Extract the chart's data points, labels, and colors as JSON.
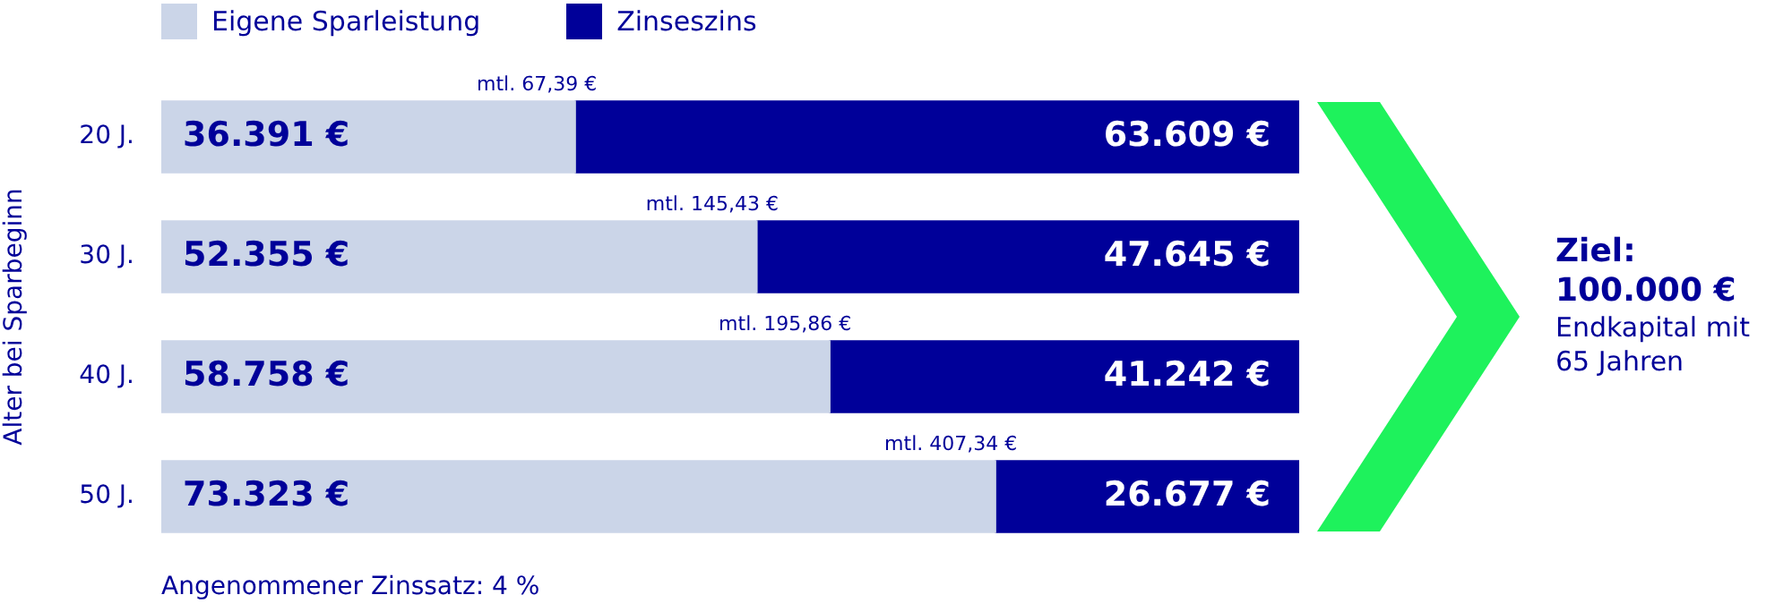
{
  "chart_data": {
    "type": "bar",
    "orientation": "horizontal",
    "stacked": true,
    "ylabel": "Alter bei Sparbeginn",
    "categories": [
      "20 J.",
      "30 J.",
      "40 J.",
      "50 J."
    ],
    "series": [
      {
        "name": "Eigene Sparleistung",
        "color": "#cbd5e8",
        "values": [
          36391,
          52355,
          58758,
          73323
        ],
        "value_labels": [
          "36.391 €",
          "52.355 €",
          "58.758 €",
          "73.323 €"
        ]
      },
      {
        "name": "Zinseszins",
        "color": "#000099",
        "values": [
          63609,
          47645,
          41242,
          26677
        ],
        "value_labels": [
          "63.609 €",
          "47.645 €",
          "41.242 €",
          "26.677 €"
        ]
      }
    ],
    "xlim": [
      0,
      100000
    ],
    "tick_labels": "y",
    "grid": false,
    "legend": "top left",
    "annotations": [
      {
        "text": "mtl. 67,39 €",
        "x": 36391,
        "y": "20 J."
      },
      {
        "text": "mtl. 145,43 €",
        "x": 52355,
        "y": "30 J."
      },
      {
        "text": "mtl. 195,86 €",
        "x": 58758,
        "y": "40 J."
      },
      {
        "text": "mtl. 407,34 €",
        "x": 73323,
        "y": "50 J."
      },
      "Ziel:",
      "100.000 €",
      "Endkapital mit 65 Jahren",
      "Angenommener Zinssatz: 4 %"
    ]
  }
}
